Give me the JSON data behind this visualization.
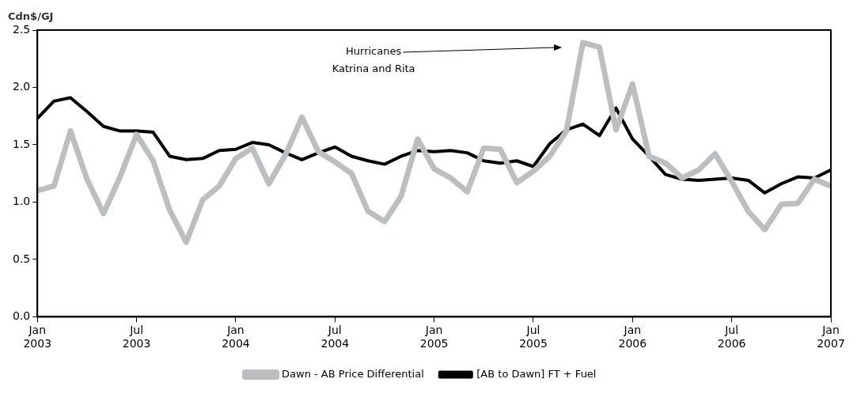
{
  "chart_data": {
    "type": "line",
    "ylabel": "Cdn$/GJ",
    "x": [
      "2003-01",
      "2003-02",
      "2003-03",
      "2003-04",
      "2003-05",
      "2003-06",
      "2003-07",
      "2003-08",
      "2003-09",
      "2003-10",
      "2003-11",
      "2003-12",
      "2004-01",
      "2004-02",
      "2004-03",
      "2004-04",
      "2004-05",
      "2004-06",
      "2004-07",
      "2004-08",
      "2004-09",
      "2004-10",
      "2004-11",
      "2004-12",
      "2005-01",
      "2005-02",
      "2005-03",
      "2005-04",
      "2005-05",
      "2005-06",
      "2005-07",
      "2005-08",
      "2005-09",
      "2005-10",
      "2005-11",
      "2005-12",
      "2006-01",
      "2006-02",
      "2006-03",
      "2006-04",
      "2006-05",
      "2006-06",
      "2006-07",
      "2006-08",
      "2006-09",
      "2006-10",
      "2006-11",
      "2006-12",
      "2007-01"
    ],
    "series": [
      {
        "name": "Dawn - AB Price Differential",
        "color": "#bdbec0",
        "values": [
          1.1,
          1.14,
          1.62,
          1.2,
          0.9,
          1.22,
          1.59,
          1.36,
          0.93,
          0.65,
          1.02,
          1.14,
          1.38,
          1.47,
          1.16,
          1.41,
          1.74,
          1.44,
          1.35,
          1.25,
          0.92,
          0.83,
          1.05,
          1.55,
          1.29,
          1.21,
          1.09,
          1.47,
          1.46,
          1.17,
          1.27,
          1.4,
          1.62,
          2.39,
          2.35,
          1.63,
          2.03,
          1.4,
          1.34,
          1.21,
          1.28,
          1.42,
          1.18,
          0.92,
          0.76,
          0.98,
          0.99,
          1.2,
          1.14
        ]
      },
      {
        "name": "[AB to Dawn] FT + Fuel",
        "color": "#000000",
        "values": [
          1.73,
          1.88,
          1.91,
          1.79,
          1.66,
          1.62,
          1.62,
          1.61,
          1.4,
          1.37,
          1.38,
          1.45,
          1.46,
          1.52,
          1.5,
          1.43,
          1.37,
          1.43,
          1.48,
          1.4,
          1.36,
          1.33,
          1.4,
          1.45,
          1.44,
          1.45,
          1.43,
          1.36,
          1.34,
          1.36,
          1.31,
          1.51,
          1.63,
          1.68,
          1.58,
          1.82,
          1.55,
          1.4,
          1.24,
          1.2,
          1.19,
          1.2,
          1.21,
          1.19,
          1.08,
          1.16,
          1.22,
          1.21,
          1.28
        ]
      }
    ],
    "xlim": [
      "2003-01",
      "2007-01"
    ],
    "xticks": [
      {
        "value": "2003-01",
        "label": "Jan 2003"
      },
      {
        "value": "2003-07",
        "label": "Jul 2003"
      },
      {
        "value": "2004-01",
        "label": "Jan 2004"
      },
      {
        "value": "2004-07",
        "label": "Jul 2004"
      },
      {
        "value": "2005-01",
        "label": "Jan 2005"
      },
      {
        "value": "2005-07",
        "label": "Jul 2005"
      },
      {
        "value": "2006-01",
        "label": "Jan 2006"
      },
      {
        "value": "2006-07",
        "label": "Jul 2006"
      },
      {
        "value": "2007-01",
        "label": "Jan 2007"
      }
    ],
    "ylim": [
      0,
      2.5
    ],
    "yticks": [
      {
        "value": 0,
        "label": "0.0"
      },
      {
        "value": 0.5,
        "label": "0.5"
      },
      {
        "value": 1,
        "label": "1.0"
      },
      {
        "value": 1.5,
        "label": "1.5"
      },
      {
        "value": 2,
        "label": "2.0"
      },
      {
        "value": 2.5,
        "label": "2.5"
      }
    ],
    "annotations": [
      "Hurricanes Katrina and Rita"
    ],
    "grid": false,
    "legend": "bottom",
    "marker": "none",
    "line_style": "solid"
  }
}
